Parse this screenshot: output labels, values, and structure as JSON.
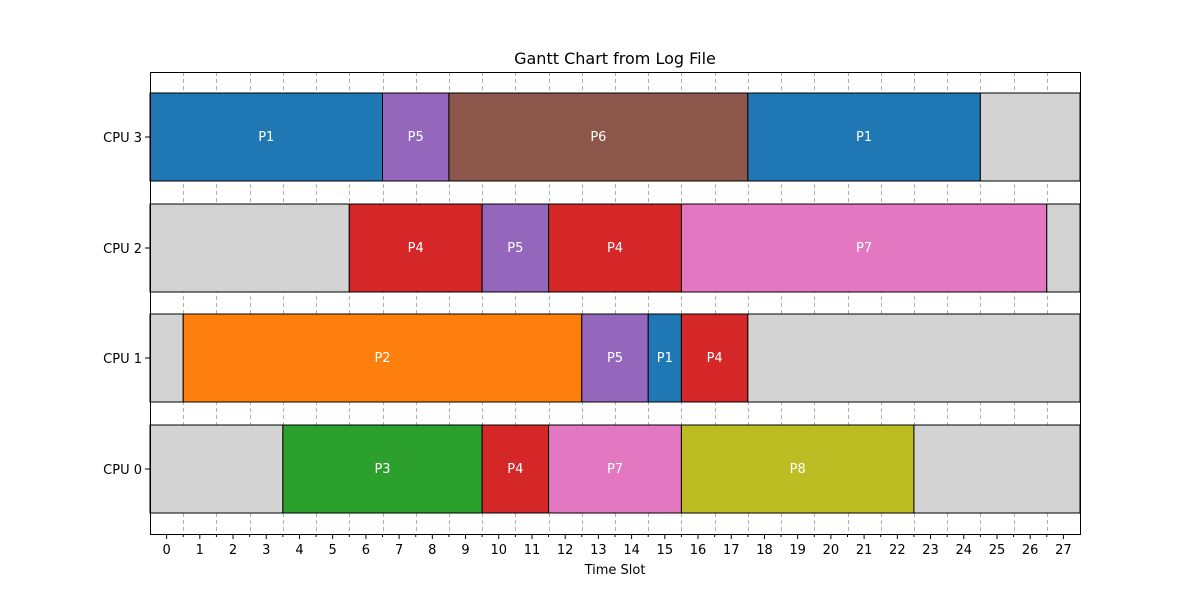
{
  "chart_data": {
    "type": "gantt",
    "title": "Gantt Chart from Log File",
    "xlabel": "Time Slot",
    "ylabel": "",
    "xlim": [
      -0.5,
      27.5
    ],
    "x_ticks": [
      0,
      1,
      2,
      3,
      4,
      5,
      6,
      7,
      8,
      9,
      10,
      11,
      12,
      13,
      14,
      15,
      16,
      17,
      18,
      19,
      20,
      21,
      22,
      23,
      24,
      25,
      26,
      27
    ],
    "grid": "vertical dashed at half slots",
    "idle_color": "#d3d3d3",
    "process_colors": {
      "P1": "#1f77b4",
      "P2": "#ff7f0e",
      "P3": "#2ca02c",
      "P4": "#d62728",
      "P5": "#9467bd",
      "P6": "#8c564b",
      "P7": "#e377c2",
      "P8": "#bcbd22"
    },
    "rows": [
      {
        "label": "CPU 3",
        "segments": [
          {
            "process": "P1",
            "start": 0,
            "end": 6
          },
          {
            "process": "P5",
            "start": 7,
            "end": 8
          },
          {
            "process": "P6",
            "start": 9,
            "end": 17
          },
          {
            "process": "P1",
            "start": 18,
            "end": 24
          },
          {
            "process": "",
            "start": 25,
            "end": 27
          }
        ]
      },
      {
        "label": "CPU 2",
        "segments": [
          {
            "process": "",
            "start": 0,
            "end": 5
          },
          {
            "process": "P4",
            "start": 6,
            "end": 9
          },
          {
            "process": "P5",
            "start": 10,
            "end": 11
          },
          {
            "process": "P4",
            "start": 12,
            "end": 15
          },
          {
            "process": "P7",
            "start": 16,
            "end": 26
          },
          {
            "process": "",
            "start": 27,
            "end": 27
          }
        ]
      },
      {
        "label": "CPU 1",
        "segments": [
          {
            "process": "",
            "start": 0,
            "end": 0
          },
          {
            "process": "P2",
            "start": 1,
            "end": 12
          },
          {
            "process": "P5",
            "start": 13,
            "end": 14
          },
          {
            "process": "P1",
            "start": 15,
            "end": 15
          },
          {
            "process": "P4",
            "start": 16,
            "end": 17
          },
          {
            "process": "",
            "start": 18,
            "end": 27
          }
        ]
      },
      {
        "label": "CPU 0",
        "segments": [
          {
            "process": "",
            "start": 0,
            "end": 3
          },
          {
            "process": "P3",
            "start": 4,
            "end": 9
          },
          {
            "process": "P4",
            "start": 10,
            "end": 11
          },
          {
            "process": "P7",
            "start": 12,
            "end": 15
          },
          {
            "process": "P8",
            "start": 16,
            "end": 22
          },
          {
            "process": "",
            "start": 23,
            "end": 27
          }
        ]
      }
    ]
  }
}
